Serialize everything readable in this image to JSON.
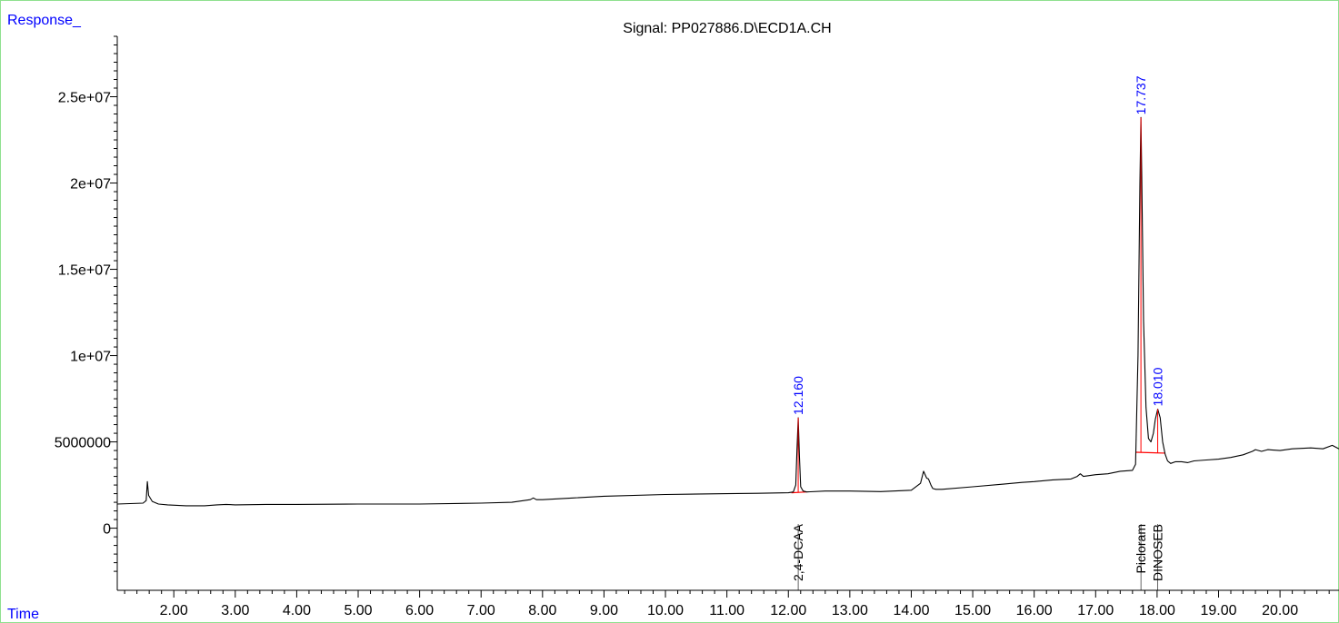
{
  "chart_data": {
    "type": "line",
    "title": "Signal: PP027886.D\\ECD1A.CH",
    "ylabel": "Response_",
    "xlabel": "Time",
    "xlim": [
      1.08,
      20.96
    ],
    "ylim": [
      -3600000,
      28500000
    ],
    "x_ticks": [
      2,
      3,
      4,
      5,
      6,
      7,
      8,
      9,
      10,
      11,
      12,
      13,
      14,
      15,
      16,
      17,
      18,
      19,
      20
    ],
    "x_tick_labels": [
      "2.00",
      "3.00",
      "4.00",
      "5.00",
      "6.00",
      "7.00",
      "8.00",
      "9.00",
      "10.00",
      "11.00",
      "12.00",
      "13.00",
      "14.00",
      "15.00",
      "16.00",
      "17.00",
      "18.00",
      "19.00",
      "20.00"
    ],
    "y_ticks": [
      0,
      5000000,
      10000000,
      15000000,
      20000000,
      25000000
    ],
    "y_tick_labels": [
      "0",
      "5000000",
      "1e+07",
      "1.5e+07",
      "2e+07",
      "2.5e+07"
    ],
    "series": [
      {
        "x": [
          1.08,
          1.5,
          1.55,
          1.57,
          1.59,
          1.65,
          1.75,
          1.9,
          2.2,
          2.5,
          2.7,
          2.85,
          3.0,
          3.5,
          4.0,
          5.0,
          6.0,
          7.0,
          7.5,
          7.8,
          7.85,
          7.9,
          8.0,
          8.5,
          9.0,
          10.0,
          11.0,
          11.5,
          12.0,
          12.08,
          12.12,
          12.14,
          12.16,
          12.18,
          12.2,
          12.24,
          12.3,
          12.6,
          13.0,
          13.5,
          14.0,
          14.15,
          14.2,
          14.25,
          14.28,
          14.32,
          14.35,
          14.4,
          14.5,
          15.0,
          15.5,
          15.8,
          16.0,
          16.3,
          16.6,
          16.7,
          16.75,
          16.8,
          17.0,
          17.2,
          17.4,
          17.6,
          17.65,
          17.69,
          17.72,
          17.737,
          17.75,
          17.78,
          17.82,
          17.86,
          17.9,
          17.94,
          17.97,
          18.01,
          18.05,
          18.09,
          18.13,
          18.17,
          18.22,
          18.3,
          18.4,
          18.5,
          18.6,
          18.8,
          19.0,
          19.2,
          19.4,
          19.55,
          19.6,
          19.7,
          19.8,
          20.0,
          20.2,
          20.5,
          20.7,
          20.85,
          20.96
        ],
        "y": [
          1400000,
          1450000,
          1600000,
          2700000,
          1900000,
          1550000,
          1400000,
          1350000,
          1300000,
          1300000,
          1350000,
          1380000,
          1350000,
          1380000,
          1380000,
          1400000,
          1400000,
          1450000,
          1500000,
          1650000,
          1750000,
          1650000,
          1650000,
          1750000,
          1850000,
          1950000,
          2000000,
          2020000,
          2050000,
          2100000,
          2500000,
          4500000,
          6400000,
          4200000,
          2400000,
          2150000,
          2100000,
          2150000,
          2150000,
          2120000,
          2200000,
          2600000,
          3300000,
          2900000,
          2850000,
          2500000,
          2300000,
          2250000,
          2250000,
          2400000,
          2550000,
          2650000,
          2700000,
          2800000,
          2850000,
          3000000,
          3150000,
          3000000,
          3100000,
          3150000,
          3300000,
          3350000,
          3700000,
          10000000,
          20000000,
          23800000,
          20500000,
          12000000,
          7000000,
          5200000,
          5000000,
          5500000,
          6300000,
          6900000,
          6400000,
          5000000,
          4300000,
          3900000,
          3750000,
          3850000,
          3850000,
          3800000,
          3900000,
          3950000,
          4000000,
          4100000,
          4250000,
          4450000,
          4550000,
          4450000,
          4550000,
          4500000,
          4600000,
          4650000,
          4600000,
          4800000,
          4600000
        ]
      }
    ],
    "peaks": [
      {
        "rt": 12.16,
        "label": "12.160",
        "name": "2,4-DCAA",
        "height": 6400000
      },
      {
        "rt": 17.737,
        "label": "17.737",
        "name": "Picloram",
        "height": 23800000
      },
      {
        "rt": 18.01,
        "label": "18.010",
        "name": "DINOSEB",
        "height": 6900000
      }
    ],
    "baselines": [
      {
        "x": [
          12.05,
          12.3
        ],
        "y": [
          2050000,
          2100000
        ]
      },
      {
        "x": [
          17.66,
          18.12
        ],
        "y": [
          4400000,
          4350000
        ]
      }
    ],
    "colors": {
      "trace": "#000000",
      "peak_label": "#0000ff",
      "baseline": "#ff0000",
      "corner_label": "#0000ff",
      "frame": "#8fe08f"
    }
  }
}
